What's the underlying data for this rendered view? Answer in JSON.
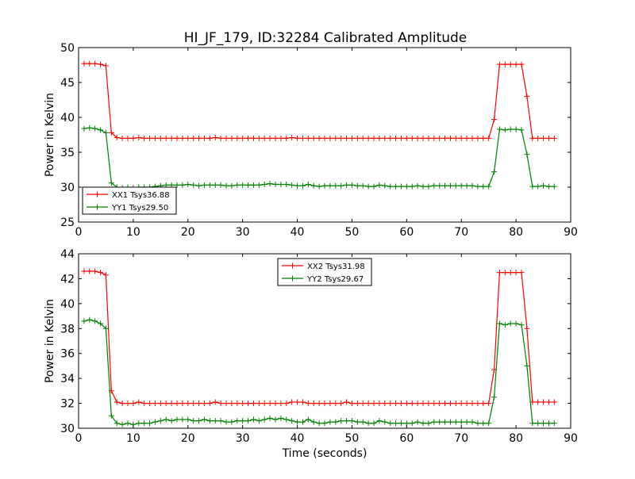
{
  "figure": {
    "title": "HI_JF_179, ID:32284 Calibrated Amplitude"
  },
  "chart_data": [
    {
      "type": "line",
      "ylabel": "Power in Kelvin",
      "xlabel": "",
      "xlim": [
        0,
        90
      ],
      "ylim": [
        25,
        50
      ],
      "xticks": [
        0,
        10,
        20,
        30,
        40,
        50,
        60,
        70,
        80,
        90
      ],
      "yticks": [
        25,
        30,
        35,
        40,
        45,
        50
      ],
      "grid": false,
      "legend_position": "lower-left",
      "series": [
        {
          "name": "XX1 Tsys36.88",
          "color": "#ff0000",
          "x": [
            1,
            2,
            3,
            4,
            5,
            6,
            7,
            8,
            9,
            10,
            11,
            12,
            13,
            14,
            15,
            16,
            17,
            18,
            19,
            20,
            21,
            22,
            23,
            24,
            25,
            26,
            27,
            28,
            29,
            30,
            31,
            32,
            33,
            34,
            35,
            36,
            37,
            38,
            39,
            40,
            41,
            42,
            43,
            44,
            45,
            46,
            47,
            48,
            49,
            50,
            51,
            52,
            53,
            54,
            55,
            56,
            57,
            58,
            59,
            60,
            61,
            62,
            63,
            64,
            65,
            66,
            67,
            68,
            69,
            70,
            71,
            72,
            73,
            74,
            75,
            76,
            77,
            78,
            79,
            80,
            81,
            82,
            83,
            84,
            85,
            86,
            87
          ],
          "values": [
            47.7,
            47.7,
            47.7,
            47.6,
            47.4,
            37.8,
            37.1,
            37.0,
            37.0,
            37.0,
            37.1,
            37.0,
            37.0,
            37.0,
            37.0,
            37.0,
            37.0,
            37.0,
            37.0,
            37.0,
            37.0,
            37.0,
            37.0,
            37.0,
            37.1,
            37.0,
            37.0,
            37.0,
            37.0,
            37.0,
            37.0,
            37.0,
            37.0,
            37.0,
            37.0,
            37.0,
            37.0,
            37.0,
            37.1,
            37.0,
            37.0,
            37.0,
            37.0,
            37.0,
            37.0,
            37.0,
            37.0,
            37.0,
            37.0,
            37.0,
            37.0,
            37.0,
            37.0,
            37.0,
            37.0,
            37.0,
            37.0,
            37.0,
            37.0,
            37.0,
            37.0,
            37.0,
            37.0,
            37.0,
            37.0,
            37.0,
            37.0,
            37.0,
            37.0,
            37.0,
            37.0,
            37.0,
            37.0,
            37.0,
            37.0,
            39.7,
            47.6,
            47.6,
            47.6,
            47.6,
            47.6,
            43.0,
            37.0,
            37.0,
            37.0,
            37.0,
            37.0
          ]
        },
        {
          "name": "YY1 Tsys29.50",
          "color": "#008000",
          "x": [
            1,
            2,
            3,
            4,
            5,
            6,
            7,
            8,
            9,
            10,
            11,
            12,
            13,
            14,
            15,
            16,
            17,
            18,
            19,
            20,
            21,
            22,
            23,
            24,
            25,
            26,
            27,
            28,
            29,
            30,
            31,
            32,
            33,
            34,
            35,
            36,
            37,
            38,
            39,
            40,
            41,
            42,
            43,
            44,
            45,
            46,
            47,
            48,
            49,
            50,
            51,
            52,
            53,
            54,
            55,
            56,
            57,
            58,
            59,
            60,
            61,
            62,
            63,
            64,
            65,
            66,
            67,
            68,
            69,
            70,
            71,
            72,
            73,
            74,
            75,
            76,
            77,
            78,
            79,
            80,
            81,
            82,
            83,
            84,
            85,
            86,
            87
          ],
          "values": [
            38.4,
            38.5,
            38.4,
            38.2,
            37.8,
            30.6,
            30.0,
            29.9,
            30.0,
            29.9,
            30.0,
            30.0,
            30.0,
            30.1,
            30.2,
            30.3,
            30.3,
            30.3,
            30.3,
            30.4,
            30.3,
            30.2,
            30.3,
            30.3,
            30.3,
            30.3,
            30.2,
            30.2,
            30.3,
            30.3,
            30.3,
            30.3,
            30.3,
            30.4,
            30.5,
            30.4,
            30.4,
            30.4,
            30.3,
            30.2,
            30.2,
            30.4,
            30.2,
            30.1,
            30.2,
            30.2,
            30.2,
            30.2,
            30.3,
            30.3,
            30.2,
            30.2,
            30.1,
            30.1,
            30.3,
            30.2,
            30.1,
            30.1,
            30.1,
            30.1,
            30.1,
            30.2,
            30.1,
            30.1,
            30.2,
            30.2,
            30.2,
            30.2,
            30.2,
            30.2,
            30.2,
            30.2,
            30.1,
            30.1,
            30.1,
            32.2,
            38.3,
            38.2,
            38.3,
            38.3,
            38.2,
            34.7,
            30.1,
            30.1,
            30.2,
            30.1,
            30.1
          ]
        }
      ]
    },
    {
      "type": "line",
      "ylabel": "Power in Kelvin",
      "xlabel": "Time (seconds)",
      "xlim": [
        0,
        90
      ],
      "ylim": [
        30,
        44
      ],
      "xticks": [
        0,
        10,
        20,
        30,
        40,
        50,
        60,
        70,
        80,
        90
      ],
      "yticks": [
        30,
        32,
        34,
        36,
        38,
        40,
        42,
        44
      ],
      "grid": false,
      "legend_position": "upper-center",
      "series": [
        {
          "name": "XX2 Tsys31.98",
          "color": "#ff0000",
          "x": [
            1,
            2,
            3,
            4,
            5,
            6,
            7,
            8,
            9,
            10,
            11,
            12,
            13,
            14,
            15,
            16,
            17,
            18,
            19,
            20,
            21,
            22,
            23,
            24,
            25,
            26,
            27,
            28,
            29,
            30,
            31,
            32,
            33,
            34,
            35,
            36,
            37,
            38,
            39,
            40,
            41,
            42,
            43,
            44,
            45,
            46,
            47,
            48,
            49,
            50,
            51,
            52,
            53,
            54,
            55,
            56,
            57,
            58,
            59,
            60,
            61,
            62,
            63,
            64,
            65,
            66,
            67,
            68,
            69,
            70,
            71,
            72,
            73,
            74,
            75,
            76,
            77,
            78,
            79,
            80,
            81,
            82,
            83,
            84,
            85,
            86,
            87
          ],
          "values": [
            42.6,
            42.6,
            42.6,
            42.5,
            42.3,
            33.0,
            32.1,
            32.0,
            32.0,
            32.0,
            32.1,
            32.0,
            32.0,
            32.0,
            32.0,
            32.0,
            32.0,
            32.0,
            32.0,
            32.0,
            32.0,
            32.0,
            32.0,
            32.0,
            32.1,
            32.0,
            32.0,
            32.0,
            32.0,
            32.0,
            32.0,
            32.0,
            32.0,
            32.0,
            32.0,
            32.0,
            32.0,
            32.0,
            32.1,
            32.1,
            32.1,
            32.0,
            32.0,
            32.0,
            32.0,
            32.0,
            32.0,
            32.0,
            32.1,
            32.0,
            32.0,
            32.0,
            32.0,
            32.0,
            32.0,
            32.0,
            32.0,
            32.0,
            32.0,
            32.0,
            32.0,
            32.0,
            32.0,
            32.0,
            32.0,
            32.0,
            32.0,
            32.0,
            32.0,
            32.0,
            32.0,
            32.0,
            32.0,
            32.0,
            32.0,
            34.7,
            42.5,
            42.5,
            42.5,
            42.5,
            42.5,
            38.0,
            32.1,
            32.1,
            32.1,
            32.1,
            32.1
          ]
        },
        {
          "name": "YY2 Tsys29.67",
          "color": "#008000",
          "x": [
            1,
            2,
            3,
            4,
            5,
            6,
            7,
            8,
            9,
            10,
            11,
            12,
            13,
            14,
            15,
            16,
            17,
            18,
            19,
            20,
            21,
            22,
            23,
            24,
            25,
            26,
            27,
            28,
            29,
            30,
            31,
            32,
            33,
            34,
            35,
            36,
            37,
            38,
            39,
            40,
            41,
            42,
            43,
            44,
            45,
            46,
            47,
            48,
            49,
            50,
            51,
            52,
            53,
            54,
            55,
            56,
            57,
            58,
            59,
            60,
            61,
            62,
            63,
            64,
            65,
            66,
            67,
            68,
            69,
            70,
            71,
            72,
            73,
            74,
            75,
            76,
            77,
            78,
            79,
            80,
            81,
            82,
            83,
            84,
            85,
            86,
            87
          ],
          "values": [
            38.6,
            38.7,
            38.6,
            38.4,
            38.0,
            31.0,
            30.4,
            30.3,
            30.4,
            30.3,
            30.4,
            30.4,
            30.4,
            30.5,
            30.6,
            30.7,
            30.6,
            30.7,
            30.7,
            30.7,
            30.6,
            30.6,
            30.7,
            30.6,
            30.6,
            30.6,
            30.5,
            30.5,
            30.6,
            30.6,
            30.6,
            30.7,
            30.6,
            30.7,
            30.8,
            30.7,
            30.8,
            30.7,
            30.6,
            30.5,
            30.5,
            30.7,
            30.5,
            30.4,
            30.4,
            30.5,
            30.5,
            30.6,
            30.6,
            30.6,
            30.5,
            30.5,
            30.4,
            30.4,
            30.6,
            30.5,
            30.4,
            30.4,
            30.4,
            30.4,
            30.4,
            30.5,
            30.4,
            30.4,
            30.5,
            30.5,
            30.5,
            30.5,
            30.5,
            30.5,
            30.5,
            30.5,
            30.4,
            30.4,
            30.4,
            32.5,
            38.4,
            38.3,
            38.4,
            38.4,
            38.3,
            35.0,
            30.4,
            30.4,
            30.4,
            30.4,
            30.4
          ]
        }
      ]
    }
  ]
}
